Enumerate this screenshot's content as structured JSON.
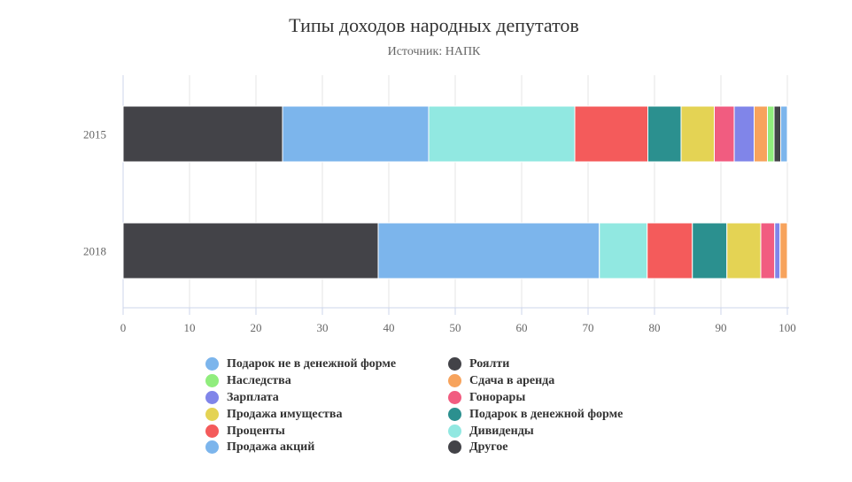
{
  "chart_data": {
    "type": "bar",
    "orientation": "horizontal",
    "stacked": true,
    "title": "Типы доходов народных депутатов",
    "subtitle": "Источник: НАПК",
    "categories": [
      "2015",
      "2018"
    ],
    "xlim": [
      0,
      100
    ],
    "ticks": [
      "0",
      "10",
      "20",
      "30",
      "40",
      "50",
      "60",
      "70",
      "80",
      "90",
      "100"
    ],
    "grid": true,
    "legend_position": "bottom",
    "series": [
      {
        "name": "Подарок не в денежной форме",
        "color": "#7cb5ec",
        "values": [
          1,
          0
        ]
      },
      {
        "name": "Роялти",
        "color": "#434348",
        "values": [
          1,
          0
        ]
      },
      {
        "name": "Наследства",
        "color": "#90ed7d",
        "values": [
          1,
          0
        ]
      },
      {
        "name": "Сдача в аренда",
        "color": "#f7a35c",
        "values": [
          2,
          1.1
        ]
      },
      {
        "name": "Зарплата",
        "color": "#8085e9",
        "values": [
          3,
          0.8
        ]
      },
      {
        "name": "Гонорары",
        "color": "#f15c80",
        "values": [
          3,
          2.1
        ]
      },
      {
        "name": "Продажа имущества",
        "color": "#e4d354",
        "values": [
          5,
          5.1
        ]
      },
      {
        "name": "Подарок в денежной форме",
        "color": "#2b908f",
        "values": [
          5,
          5.2
        ]
      },
      {
        "name": "Проценты",
        "color": "#f45b5b",
        "values": [
          11,
          6.8
        ]
      },
      {
        "name": "Дивиденды",
        "color": "#91e8e1",
        "values": [
          22,
          7.2
        ]
      },
      {
        "name": "Продажа акций",
        "color": "#7cb5ec",
        "values": [
          22,
          33.3
        ]
      },
      {
        "name": "Другое",
        "color": "#434348",
        "values": [
          24,
          38.4
        ]
      }
    ]
  }
}
